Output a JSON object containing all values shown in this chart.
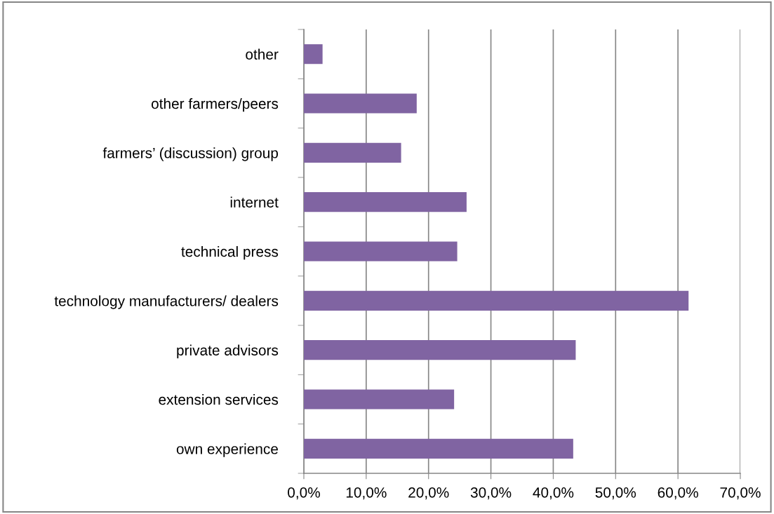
{
  "chart_data": {
    "type": "bar",
    "orientation": "horizontal",
    "categories": [
      "other",
      "other farmers/peers",
      "farmers’ (discussion) group",
      "internet",
      "technical press",
      "technology manufacturers/ dealers",
      "private advisors",
      "extension services",
      "own experience"
    ],
    "values": [
      3.0,
      18.1,
      15.6,
      26.1,
      24.6,
      61.7,
      43.6,
      24.1,
      43.2
    ],
    "color": "#8064a2",
    "xlim": [
      0,
      70
    ],
    "xticks": [
      {
        "value": 0,
        "label": "0,0%"
      },
      {
        "value": 10,
        "label": "10,0%"
      },
      {
        "value": 20,
        "label": "20,0%"
      },
      {
        "value": 30,
        "label": "30,0%"
      },
      {
        "value": 40,
        "label": "40,0%"
      },
      {
        "value": 50,
        "label": "50,0%"
      },
      {
        "value": 60,
        "label": "60,0%"
      },
      {
        "value": 70,
        "label": "70,0%"
      }
    ],
    "grid": "x",
    "legend": false
  }
}
